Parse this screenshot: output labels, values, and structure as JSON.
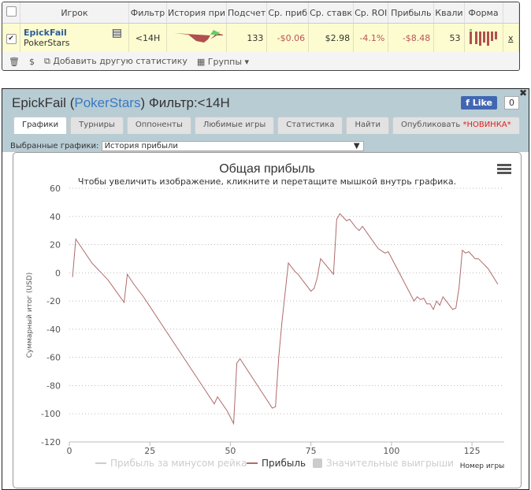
{
  "table": {
    "headers": [
      "Игрок",
      "Фильтр",
      "История при",
      "Подсчет",
      "Ср. приб",
      "Ср. ставк",
      "Ср. ROI",
      "Прибыль",
      "Квали",
      "Форма"
    ],
    "row": {
      "checked": true,
      "player": "EpickFail",
      "site": "PokerStars",
      "filter": "<14H",
      "count": "133",
      "avg_profit": "-$0.06",
      "avg_stake": "$2.98",
      "roi": "-4.1%",
      "profit": "-$8.48",
      "qual": "53",
      "remove": "x"
    }
  },
  "footer": {
    "add_stat": "Добавить другую статистику",
    "groups": "Группы"
  },
  "panel": {
    "player": "EpickFail",
    "site": "PokerStars",
    "filter": "Фильтр:<14H",
    "like": "Like",
    "like_count": "0",
    "tabs": [
      "Графики",
      "Турниры",
      "Оппоненты",
      "Любимые игры",
      "Статистика",
      "Найти",
      "Опубликовать"
    ],
    "tab_new": "*НОВИНКА*",
    "select_label": "Выбранные графики:",
    "select_value": "История прибыли"
  },
  "chart_data": {
    "type": "line",
    "title": "Общая прибыль",
    "subtitle": "Чтобы увеличить изображение, кликните и перетащите мышкой внутрь графика.",
    "xlabel": "Номер игры",
    "ylabel": "Суммарный итог (USD)",
    "xlim": [
      0,
      135
    ],
    "ylim": [
      -120,
      60
    ],
    "xticks": [
      0,
      25,
      50,
      75,
      100,
      125
    ],
    "yticks": [
      60,
      40,
      20,
      0,
      -20,
      -40,
      -60,
      -80,
      -100,
      -120
    ],
    "grid": true,
    "legend_position": "bottom",
    "legend": [
      "Прибыль за минусом рейка",
      "Прибыль",
      "Значительные выигрыши"
    ],
    "color": "#b06a6a",
    "series": [
      {
        "name": "Прибыль",
        "points": [
          [
            1,
            -3
          ],
          [
            2,
            24
          ],
          [
            7,
            7
          ],
          [
            12,
            -5
          ],
          [
            17,
            -21
          ],
          [
            18,
            -1
          ],
          [
            20,
            -8
          ],
          [
            23,
            -17
          ],
          [
            45,
            -93
          ],
          [
            46,
            -88
          ],
          [
            49,
            -98
          ],
          [
            51,
            -107
          ],
          [
            52,
            -64
          ],
          [
            53,
            -61
          ],
          [
            63,
            -96
          ],
          [
            64,
            -95
          ],
          [
            65,
            -60
          ],
          [
            66,
            -35
          ],
          [
            68,
            7
          ],
          [
            70,
            1
          ],
          [
            71,
            -1
          ],
          [
            75,
            -13
          ],
          [
            76,
            -11
          ],
          [
            77,
            -3
          ],
          [
            78,
            10
          ],
          [
            82,
            -1
          ],
          [
            83,
            38
          ],
          [
            84,
            42
          ],
          [
            86,
            37
          ],
          [
            87,
            38
          ],
          [
            89,
            32
          ],
          [
            90,
            30
          ],
          [
            91,
            33
          ],
          [
            95,
            20
          ],
          [
            96,
            17
          ],
          [
            98,
            14
          ],
          [
            99,
            15
          ],
          [
            107,
            -20
          ],
          [
            108,
            -17
          ],
          [
            109,
            -19
          ],
          [
            110,
            -18
          ],
          [
            111,
            -22
          ],
          [
            112,
            -22
          ],
          [
            113,
            -26
          ],
          [
            114,
            -20
          ],
          [
            115,
            -23
          ],
          [
            116,
            -17
          ],
          [
            119,
            -26
          ],
          [
            120,
            -25
          ],
          [
            121,
            -10
          ],
          [
            122,
            16
          ],
          [
            123,
            14
          ],
          [
            124,
            15
          ],
          [
            126,
            10
          ],
          [
            127,
            10
          ],
          [
            130,
            3
          ],
          [
            133,
            -8
          ]
        ]
      }
    ]
  }
}
